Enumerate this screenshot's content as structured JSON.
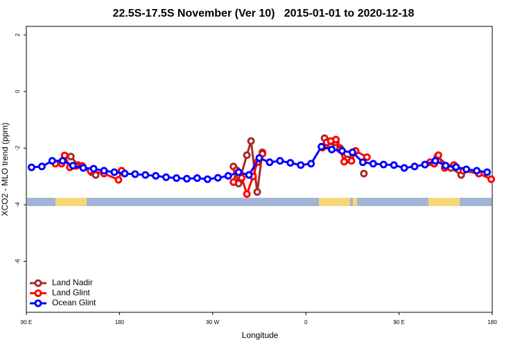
{
  "chart_data": {
    "type": "line",
    "title": "22.5S-17.5S November (Ver 10)   2015-01-01 to 2020-12-18",
    "xlabel": "Longitude",
    "ylabel": "XCO2 - MLO trend (ppm)",
    "xlim": [
      90,
      540
    ],
    "ylim": [
      -7.8,
      2.3
    ],
    "xticks": [
      {
        "value": 90,
        "label": "90 E"
      },
      {
        "value": 180,
        "label": "180"
      },
      {
        "value": 270,
        "label": "90 W"
      },
      {
        "value": 360,
        "label": "0"
      },
      {
        "value": 450,
        "label": "90 E"
      },
      {
        "value": 540,
        "label": "180"
      }
    ],
    "yticks": [
      2,
      0,
      -2,
      -4,
      -6
    ],
    "legend": "bottom-left",
    "series": [
      {
        "name": "Land Nadir",
        "color": "#a52a2a",
        "x": [
          133,
          140,
          153,
          157,
          null,
          290,
          295,
          303,
          307,
          313,
          318,
          null,
          378,
          384,
          389,
          393,
          400,
          408,
          null,
          416,
          null,
          487,
          500,
          510
        ],
        "values": [
          -2.3,
          -2.6,
          -2.85,
          -2.95,
          null,
          -2.65,
          -3.25,
          -2.25,
          -1.75,
          -3.55,
          -2.15,
          null,
          -1.65,
          -1.95,
          -1.8,
          -2.0,
          -2.4,
          -2.1,
          null,
          -2.9,
          null,
          -2.3,
          -2.7,
          -2.95
        ]
      },
      {
        "name": "Land Glint",
        "color": "#ff0000",
        "x": [
          118,
          124,
          127,
          132,
          138,
          144,
          152,
          165,
          179,
          182,
          null,
          290,
          293,
          298,
          303,
          309,
          313,
          318,
          null,
          376,
          380,
          384,
          389,
          393,
          397,
          404,
          408,
          419,
          null,
          480,
          484,
          488,
          494,
          503,
          512,
          527,
          539
        ],
        "values": [
          -2.55,
          -2.55,
          -2.26,
          -2.68,
          -2.63,
          -2.63,
          -2.8,
          -2.9,
          -3.12,
          -2.8,
          null,
          -3.2,
          -2.78,
          -3.05,
          -3.62,
          -3.0,
          -2.5,
          -2.2,
          null,
          -1.98,
          -1.8,
          -1.75,
          -1.7,
          -2.05,
          -2.48,
          -2.45,
          -2.1,
          -2.32,
          null,
          -2.5,
          -2.55,
          -2.25,
          -2.7,
          -2.6,
          -2.8,
          -2.9,
          -3.1
        ]
      },
      {
        "name": "Ocean Glint",
        "color": "#0000ff",
        "x": [
          95,
          105,
          115,
          125,
          135,
          145,
          155,
          165,
          175,
          185,
          195,
          205,
          215,
          225,
          235,
          245,
          255,
          265,
          275,
          285,
          295,
          305,
          315,
          325,
          335,
          345,
          355,
          365,
          375,
          385,
          395,
          405,
          415,
          425,
          435,
          445,
          455,
          465,
          475,
          485,
          495,
          505,
          515,
          525,
          535
        ],
        "values": [
          -2.68,
          -2.65,
          -2.45,
          -2.45,
          -2.62,
          -2.7,
          -2.73,
          -2.8,
          -2.85,
          -2.9,
          -2.92,
          -2.95,
          -2.98,
          -3.03,
          -3.06,
          -3.08,
          -3.06,
          -3.1,
          -3.05,
          -2.98,
          -2.85,
          -2.95,
          -2.35,
          -2.5,
          -2.45,
          -2.52,
          -2.6,
          -2.55,
          -1.95,
          -2.05,
          -2.1,
          -2.15,
          -2.5,
          -2.55,
          -2.58,
          -2.6,
          -2.7,
          -2.65,
          -2.58,
          -2.45,
          -2.62,
          -2.67,
          -2.75,
          -2.8,
          -2.85
        ]
      }
    ]
  }
}
